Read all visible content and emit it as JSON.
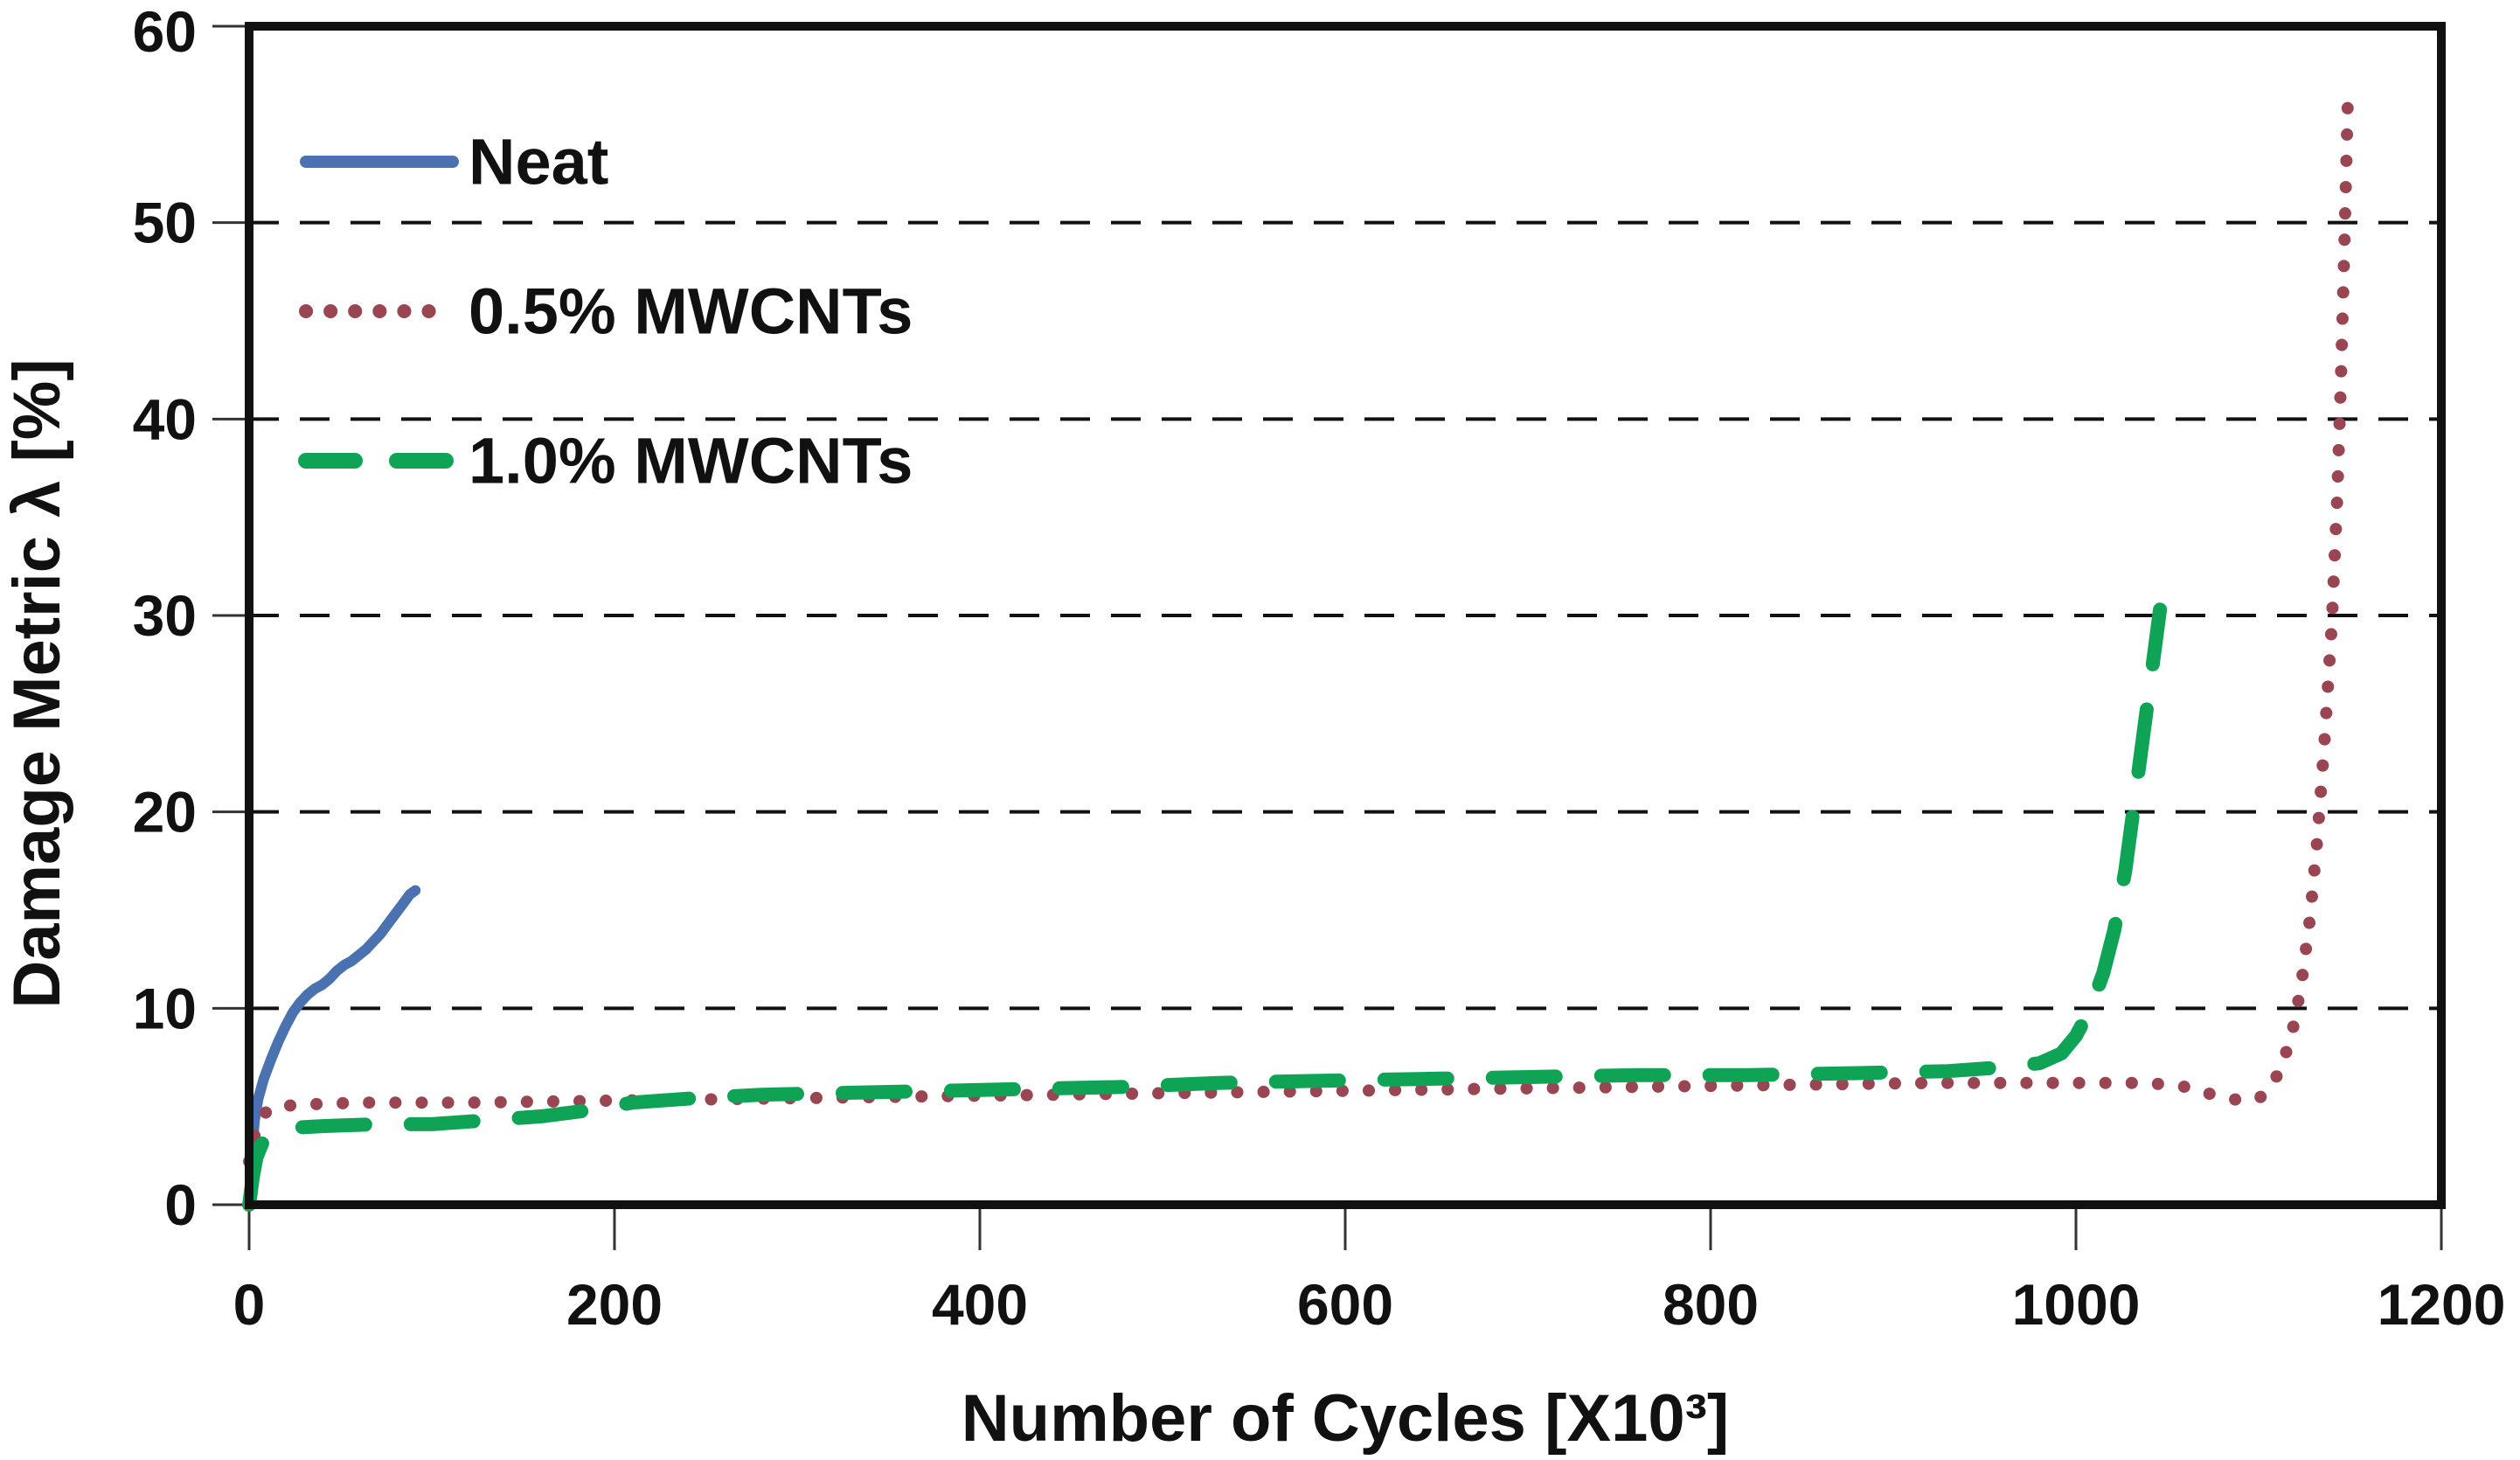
{
  "chart_data": {
    "type": "line",
    "title": "",
    "xlabel": "Number of Cycles [X10³]",
    "ylabel": "Damage Metric λ [%]",
    "xlim": [
      0,
      1200
    ],
    "ylim": [
      0,
      60
    ],
    "x_ticks": [
      0,
      200,
      400,
      600,
      800,
      1000,
      1200
    ],
    "y_ticks": [
      0,
      10,
      20,
      30,
      40,
      50,
      60
    ],
    "grid": "horizontal dashed black lines at y=10..50",
    "legend_position": "top-left inside plot",
    "colors": {
      "axis": "#111111",
      "gridline": "#111111",
      "background": "#ffffff"
    },
    "series": [
      {
        "name": "Neat",
        "color": "#4a72b0",
        "style": "solid",
        "points": [
          [
            0,
            0
          ],
          [
            1,
            1.8
          ],
          [
            2,
            3.2
          ],
          [
            3,
            4.3
          ],
          [
            5,
            5.4
          ],
          [
            8,
            6.4
          ],
          [
            12,
            7.4
          ],
          [
            16,
            8.3
          ],
          [
            20,
            9.1
          ],
          [
            24,
            9.8
          ],
          [
            28,
            10.3
          ],
          [
            32,
            10.7
          ],
          [
            36,
            11.0
          ],
          [
            40,
            11.2
          ],
          [
            44,
            11.5
          ],
          [
            48,
            11.9
          ],
          [
            52,
            12.2
          ],
          [
            56,
            12.4
          ],
          [
            60,
            12.7
          ],
          [
            64,
            13.0
          ],
          [
            68,
            13.4
          ],
          [
            72,
            13.8
          ],
          [
            76,
            14.3
          ],
          [
            80,
            14.8
          ],
          [
            84,
            15.3
          ],
          [
            88,
            15.8
          ],
          [
            91,
            16.0
          ]
        ]
      },
      {
        "name": "0.5% MWCNTs",
        "color": "#9a4552",
        "style": "dotted",
        "points": [
          [
            0,
            2.2
          ],
          [
            2,
            3.2
          ],
          [
            5,
            4.2
          ],
          [
            10,
            4.8
          ],
          [
            15,
            5.0
          ],
          [
            30,
            5.1
          ],
          [
            60,
            5.2
          ],
          [
            120,
            5.2
          ],
          [
            200,
            5.3
          ],
          [
            280,
            5.4
          ],
          [
            360,
            5.5
          ],
          [
            440,
            5.6
          ],
          [
            520,
            5.7
          ],
          [
            600,
            5.8
          ],
          [
            680,
            5.9
          ],
          [
            760,
            6.0
          ],
          [
            840,
            6.1
          ],
          [
            920,
            6.2
          ],
          [
            1000,
            6.2
          ],
          [
            1040,
            6.2
          ],
          [
            1060,
            6.0
          ],
          [
            1075,
            5.6
          ],
          [
            1090,
            5.3
          ],
          [
            1100,
            5.4
          ],
          [
            1106,
            5.9
          ],
          [
            1112,
            6.9
          ],
          [
            1118,
            8.6
          ],
          [
            1123,
            11.0
          ],
          [
            1128,
            14.5
          ],
          [
            1132,
            18.5
          ],
          [
            1136,
            23.5
          ],
          [
            1140,
            29.5
          ],
          [
            1143,
            36.0
          ],
          [
            1145,
            42.0
          ],
          [
            1147,
            49.0
          ],
          [
            1149,
            57.0
          ]
        ]
      },
      {
        "name": "1.0% MWCNTs",
        "color": "#0fa455",
        "style": "dashed",
        "points": [
          [
            0,
            0
          ],
          [
            2,
            1.4
          ],
          [
            4,
            2.4
          ],
          [
            7,
            3.1
          ],
          [
            12,
            3.6
          ],
          [
            20,
            3.9
          ],
          [
            40,
            4.0
          ],
          [
            70,
            4.1
          ],
          [
            100,
            4.1
          ],
          [
            130,
            4.3
          ],
          [
            160,
            4.5
          ],
          [
            185,
            4.8
          ],
          [
            210,
            5.2
          ],
          [
            240,
            5.4
          ],
          [
            280,
            5.6
          ],
          [
            330,
            5.7
          ],
          [
            380,
            5.8
          ],
          [
            430,
            5.9
          ],
          [
            480,
            6.0
          ],
          [
            530,
            6.2
          ],
          [
            580,
            6.3
          ],
          [
            640,
            6.4
          ],
          [
            700,
            6.5
          ],
          [
            760,
            6.6
          ],
          [
            820,
            6.6
          ],
          [
            880,
            6.7
          ],
          [
            930,
            6.8
          ],
          [
            960,
            7.0
          ],
          [
            980,
            7.2
          ],
          [
            992,
            7.7
          ],
          [
            1000,
            8.6
          ],
          [
            1008,
            10.0
          ],
          [
            1015,
            11.8
          ],
          [
            1021,
            14.0
          ],
          [
            1027,
            17.0
          ],
          [
            1032,
            20.5
          ],
          [
            1037,
            24.0
          ],
          [
            1042,
            27.5
          ],
          [
            1046,
            30.3
          ]
        ]
      }
    ]
  }
}
